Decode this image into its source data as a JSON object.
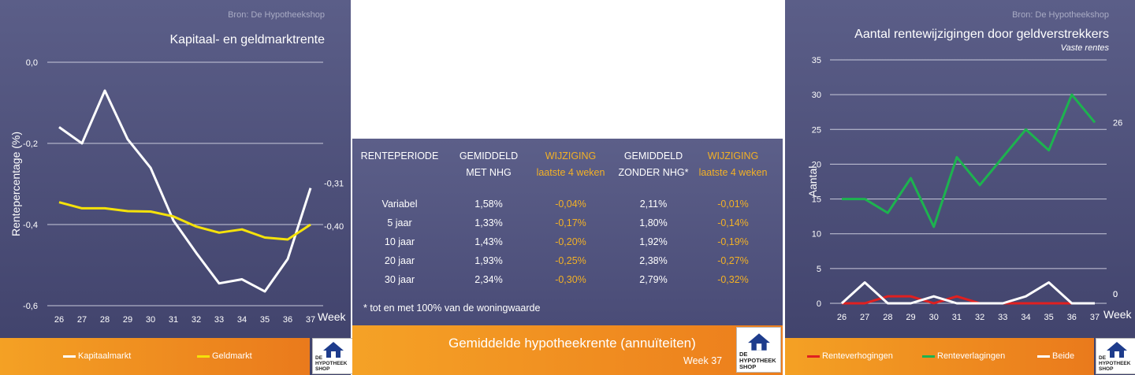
{
  "left_panel": {
    "source": "Bron: De Hypotheekshop",
    "title": "Kapitaal- en geldmarktrente",
    "legend": [
      {
        "label": "Kapitaalmarkt",
        "color": "#ffffff"
      },
      {
        "label": "Geldmarkt",
        "color": "#f5e20a"
      }
    ],
    "logo_text": "DE HYPOTHEEK SHOP"
  },
  "right_panel": {
    "source": "Bron: De Hypotheekshop",
    "title": "Aantal rentewijzigingen door geldverstrekkers",
    "subtitle": "Vaste rentes",
    "legend": [
      {
        "label": "Renteverhogingen",
        "color": "#e02020"
      },
      {
        "label": "Renteverlagingen",
        "color": "#1db34f"
      },
      {
        "label": "Beide",
        "color": "#ffffff"
      }
    ],
    "logo_text": "DE HYPOTHEEK SHOP"
  },
  "table": {
    "headers": [
      {
        "line1": "RENTEPERIODE",
        "line2": ""
      },
      {
        "line1": "GEMIDDELD",
        "line2": "MET NHG"
      },
      {
        "line1": "WIJZIGING",
        "line2": "laatste 4 weken"
      },
      {
        "line1": "GEMIDDELD",
        "line2": "ZONDER NHG*"
      },
      {
        "line1": "WIJZIGING",
        "line2": "laatste 4 weken"
      }
    ],
    "rows": [
      [
        "Variabel",
        "1,58%",
        "-0,04%",
        "2,11%",
        "-0,01%"
      ],
      [
        "5 jaar",
        "1,33%",
        "-0,17%",
        "1,80%",
        "-0,14%"
      ],
      [
        "10 jaar",
        "1,43%",
        "-0,20%",
        "1,92%",
        "-0,19%"
      ],
      [
        "20 jaar",
        "1,93%",
        "-0,25%",
        "2,38%",
        "-0,27%"
      ],
      [
        "30 jaar",
        "2,34%",
        "-0,30%",
        "2,79%",
        "-0,32%"
      ]
    ],
    "footnote": "* tot en met 100% van de woningwaarde",
    "footer_title": "Gemiddelde hypotheekrente (annuïteiten)",
    "footer_week": "Week 37",
    "logo_text": "DE HYPOTHEEK SHOP"
  },
  "chart_data": [
    {
      "type": "line",
      "title": "Kapitaal- en geldmarktrente",
      "xlabel": "Week",
      "ylabel": "Rentepercentage (%)",
      "x": [
        26,
        27,
        28,
        29,
        30,
        31,
        32,
        33,
        34,
        35,
        36,
        37
      ],
      "y_ticks": [
        "0,0",
        "-0,2",
        "-0,4",
        "-0,6"
      ],
      "ylim": [
        -0.6,
        0.0
      ],
      "grid": true,
      "legend_position": "bottom",
      "series": [
        {
          "name": "Kapitaalmarkt",
          "color": "#ffffff",
          "values": [
            -0.16,
            -0.2,
            -0.07,
            -0.19,
            -0.26,
            -0.39,
            -0.47,
            -0.545,
            -0.535,
            -0.565,
            -0.485,
            -0.31
          ],
          "end_label": "-0,31"
        },
        {
          "name": "Geldmarkt",
          "color": "#f5e20a",
          "values": [
            -0.345,
            -0.36,
            -0.36,
            -0.367,
            -0.368,
            -0.38,
            -0.405,
            -0.42,
            -0.412,
            -0.432,
            -0.437,
            -0.4
          ],
          "end_label": "-0,40"
        }
      ]
    },
    {
      "type": "line",
      "title": "Aantal rentewijzigingen door geldverstrekkers",
      "subtitle": "Vaste rentes",
      "xlabel": "Week",
      "ylabel": "Aantal",
      "x": [
        26,
        27,
        28,
        29,
        30,
        31,
        32,
        33,
        34,
        35,
        36,
        37
      ],
      "y_ticks": [
        "0",
        "5",
        "10",
        "15",
        "20",
        "25",
        "30",
        "35"
      ],
      "ylim": [
        0,
        35
      ],
      "grid": true,
      "legend_position": "bottom",
      "series": [
        {
          "name": "Renteverhogingen",
          "color": "#e02020",
          "values": [
            0,
            0,
            1,
            1,
            0,
            1,
            0,
            0,
            0,
            0,
            0,
            0
          ],
          "end_label": "0"
        },
        {
          "name": "Renteverlagingen",
          "color": "#1db34f",
          "values": [
            15,
            15,
            13,
            18,
            11,
            21,
            17,
            21,
            25,
            22,
            30,
            26
          ],
          "end_label": "26"
        },
        {
          "name": "Beide",
          "color": "#ffffff",
          "values": [
            0,
            3,
            0,
            0,
            1,
            0,
            0,
            0,
            1,
            3,
            0,
            0
          ],
          "end_label": "0"
        }
      ]
    }
  ]
}
